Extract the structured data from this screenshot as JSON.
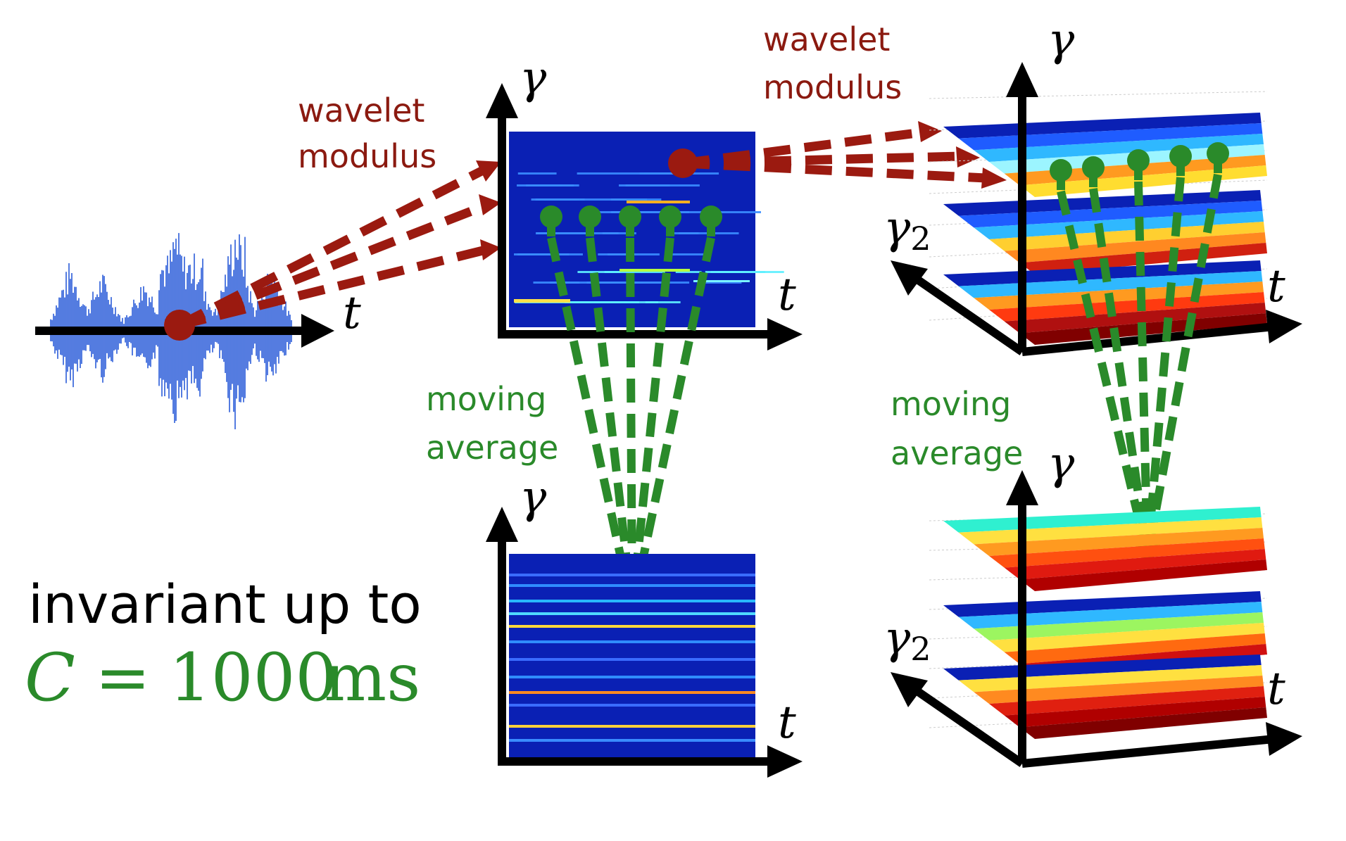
{
  "labels": {
    "wavelet_1": "wavelet",
    "modulus_1": "modulus",
    "wavelet_2": "wavelet",
    "modulus_2": "modulus",
    "moving_1": "moving",
    "average_1": "average",
    "moving_2": "moving",
    "average_2": "average",
    "invariant": "invariant up to",
    "formula_c": "C",
    "formula_eq": "=",
    "formula_num": "1000",
    "formula_unit": "ms"
  },
  "axes": {
    "t": "t",
    "gamma": "γ",
    "gamma2_base": "γ",
    "gamma2_sub": "2"
  },
  "colors": {
    "wavelet_red": "#8b1a10",
    "average_green": "#2a8a2a",
    "signal_blue": "#2a5bd8",
    "scalogram_bg": "#0a1fb0"
  }
}
